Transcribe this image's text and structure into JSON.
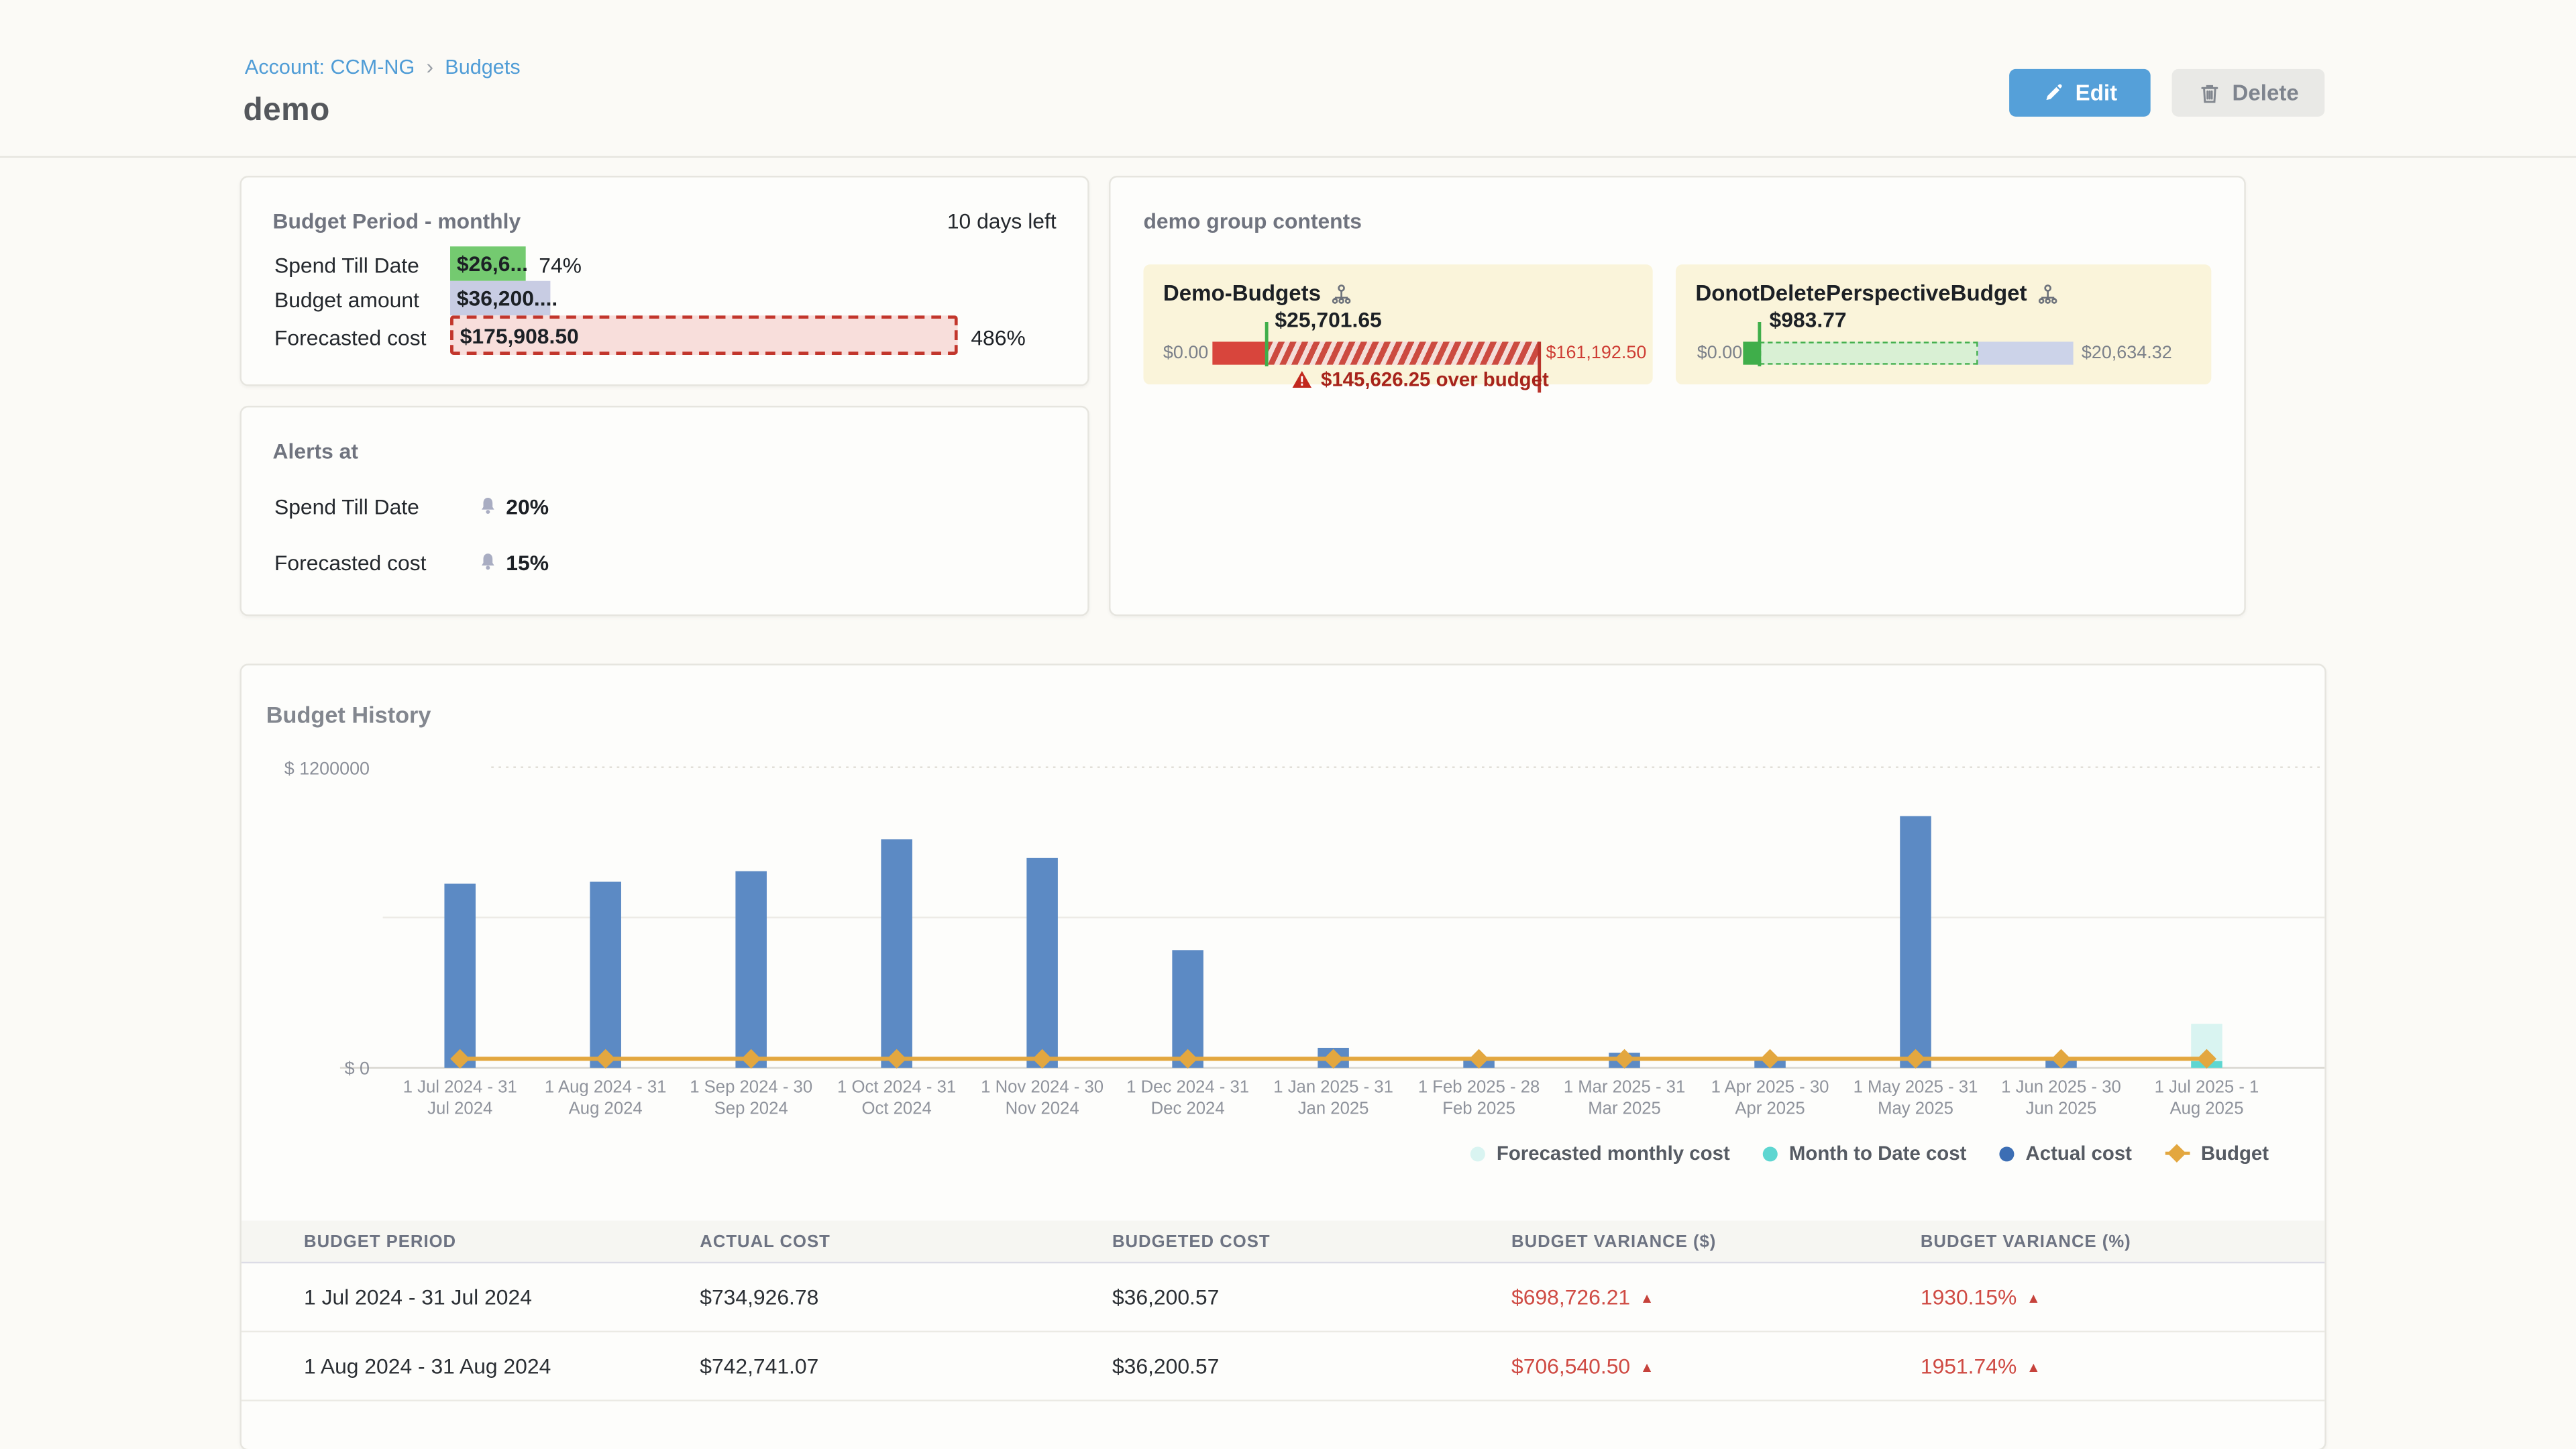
{
  "breadcrumb": {
    "account": "Account: CCM-NG",
    "separator": "›",
    "section": "Budgets"
  },
  "page": {
    "title": "demo"
  },
  "actions": {
    "edit": "Edit",
    "delete": "Delete"
  },
  "budget_period": {
    "title": "Budget Period - monthly",
    "days_left": "10 days left",
    "spend": {
      "label": "Spend Till Date",
      "value": "$26,6...",
      "percent": "74%"
    },
    "amount": {
      "label": "Budget amount",
      "value": "$36,200...."
    },
    "forecast": {
      "label": "Forecasted cost",
      "value": "$175,908.50",
      "percent": "486%"
    }
  },
  "alerts": {
    "title": "Alerts at",
    "rows": [
      {
        "label": "Spend Till Date",
        "value": "20%"
      },
      {
        "label": "Forecasted cost",
        "value": "15%"
      }
    ]
  },
  "group": {
    "title": "demo group contents",
    "budgets": [
      {
        "name": "Demo-Budgets",
        "min": "$0.00",
        "max": "$161,192.50",
        "marker": "$25,701.65",
        "over_budget": "$145,626.25 over budget"
      },
      {
        "name": "DonotDeletePerspectiveBudget",
        "min": "$0.00",
        "max": "$20,634.32",
        "marker": "$983.77"
      }
    ]
  },
  "history": {
    "title": "Budget History"
  },
  "chart_data": {
    "type": "bar",
    "title": "Budget History",
    "ylim": [
      0,
      1200000
    ],
    "yticks": [
      {
        "value": 1200000,
        "label": "$ 1200000"
      },
      {
        "value": 0,
        "label": "$ 0"
      }
    ],
    "grid": true,
    "legend_position": "bottom-right",
    "categories": [
      "1 Jul 2024 - 31 Jul 2024",
      "1 Aug 2024 - 31 Aug 2024",
      "1 Sep 2024 - 30 Sep 2024",
      "1 Oct 2024 - 31 Oct 2024",
      "1 Nov 2024 - 30 Nov 2024",
      "1 Dec 2024 - 31 Dec 2024",
      "1 Jan 2025 - 31 Jan 2025",
      "1 Feb 2025 - 28 Feb 2025",
      "1 Mar 2025 - 31 Mar 2025",
      "1 Apr 2025 - 30 Apr 2025",
      "1 May 2025 - 31 May 2025",
      "1 Jun 2025 - 30 Jun 2025",
      "1 Jul 2025 - 1 Aug 2025"
    ],
    "series": [
      {
        "name": "Forecasted monthly cost",
        "type": "bar",
        "color": "#d9f4f1",
        "values": [
          null,
          null,
          null,
          null,
          null,
          null,
          null,
          null,
          null,
          null,
          null,
          null,
          175908.5
        ]
      },
      {
        "name": "Month to Date cost",
        "type": "bar",
        "color": "#5ed6d1",
        "values": [
          null,
          null,
          null,
          null,
          null,
          null,
          null,
          null,
          null,
          null,
          null,
          null,
          26620
        ]
      },
      {
        "name": "Actual cost",
        "type": "bar",
        "color": "#5c8ac4",
        "legend_color": "#3c6eb4",
        "values": [
          734926.78,
          742741.07,
          785000,
          912000,
          838000,
          470000,
          80000,
          30000,
          60000,
          32000,
          1005000,
          34000,
          null
        ]
      },
      {
        "name": "Budget",
        "type": "line",
        "color": "#e3a73f",
        "values": [
          36200.57,
          36200.57,
          36200.57,
          36200.57,
          36200.57,
          36200.57,
          36200.57,
          36200.57,
          36200.57,
          36200.57,
          36200.57,
          36200.57,
          36200.57
        ]
      }
    ]
  },
  "table": {
    "headers": [
      "BUDGET PERIOD",
      "ACTUAL COST",
      "BUDGETED COST",
      "BUDGET VARIANCE ($)",
      "BUDGET VARIANCE (%)"
    ],
    "rows": [
      {
        "period": "1 Jul 2024 - 31 Jul 2024",
        "actual": "$734,926.78",
        "budgeted": "$36,200.57",
        "variance_usd": "$698,726.21",
        "variance_pct": "1930.15%",
        "direction": "up"
      },
      {
        "period": "1 Aug 2024 - 31 Aug 2024",
        "actual": "$742,741.07",
        "budgeted": "$36,200.57",
        "variance_usd": "$706,540.50",
        "variance_pct": "1951.74%",
        "direction": "up"
      }
    ]
  },
  "colors": {
    "accent_blue": "#55a0d9",
    "link_blue": "#4f9cd6",
    "bar_blue": "#5c8ac4",
    "budget_line": "#e3a73f",
    "forecast_cyan": "#d9f4f1",
    "mtd_cyan": "#5ed6d1",
    "danger_red": "#cf4b44",
    "over_red": "#a7231b",
    "green": "#74ca70",
    "group_card_bg": "#faf4da",
    "lavender": "#c8cce3",
    "pink": "#f8dedb"
  }
}
